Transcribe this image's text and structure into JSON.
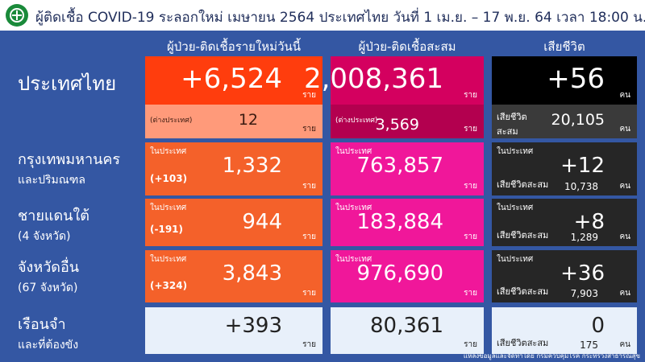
{
  "header": {
    "title": "ผู้ติดเชื้อ COVID-19 ระลอกใหม่ เมษายน 2564 ประเทศไทย วันที่ 1 เม.ย. – 17 พ.ย. 64 เวลา 18:00 น."
  },
  "columns": [
    "ผู้ป่วย-ติดเชื้อรายใหม่วันนี้",
    "ผู้ป่วย-ติดเชื้อสะสม",
    "เสียชีวิต"
  ],
  "rows": [
    {
      "label": [
        "ประเทศไทย"
      ],
      "new": {
        "value": "+6,524",
        "unit": "ราย",
        "sub_label": "(ต่างประเทศ)",
        "sub_value": "12",
        "sub_unit": "ราย"
      },
      "total": {
        "value": "2,008,361",
        "unit": "ราย",
        "sub_label": "(ต่างประเทศ)",
        "sub_value": "3,569",
        "sub_unit": "ราย"
      },
      "deaths": {
        "value": "+56",
        "unit": "คน",
        "sub_label": "เสียชีวิต สะสม",
        "sub_value": "20,105",
        "sub_unit": "คน"
      }
    },
    {
      "label": [
        "กรุงเทพมหานคร",
        "และปริมณฑล"
      ],
      "new": {
        "tag": "ในประเทศ",
        "change": "(+103)",
        "value": "1,332",
        "unit": "ราย"
      },
      "total": {
        "tag": "ในประเทศ",
        "value": "763,857",
        "unit": "ราย"
      },
      "deaths": {
        "tag": "ในประเทศ",
        "value": "+12",
        "cum_label": "เสียชีวิตสะสม",
        "cum_value": "10,738",
        "unit": "คน"
      }
    },
    {
      "label": [
        "ชายแดนใต้",
        "(4 จังหวัด)"
      ],
      "new": {
        "tag": "ในประเทศ",
        "change": "(-191)",
        "value": "944",
        "unit": "ราย"
      },
      "total": {
        "tag": "ในประเทศ",
        "value": "183,884",
        "unit": "ราย"
      },
      "deaths": {
        "tag": "ในประเทศ",
        "value": "+8",
        "cum_label": "เสียชีวิตสะสม",
        "cum_value": "1,289",
        "unit": "คน"
      }
    },
    {
      "label": [
        "จังหวัดอื่น",
        "(67 จังหวัด)"
      ],
      "new": {
        "tag": "ในประเทศ",
        "change": "(+324)",
        "value": "3,843",
        "unit": "ราย"
      },
      "total": {
        "tag": "ในประเทศ",
        "value": "976,690",
        "unit": "ราย"
      },
      "deaths": {
        "tag": "ในประเทศ",
        "value": "+36",
        "cum_label": "เสียชีวิตสะสม",
        "cum_value": "7,903",
        "unit": "คน"
      }
    },
    {
      "label": [
        "เรือนจำ",
        "และที่ต้องขัง"
      ],
      "new": {
        "value": "+393",
        "unit": "ราย"
      },
      "total": {
        "value": "80,361",
        "unit": "ราย"
      },
      "deaths": {
        "value": "0",
        "cum_label": "เสียชีวิตสะสม",
        "cum_value": "175",
        "unit": "คน"
      }
    }
  ],
  "footer": {
    "source": "แหล่งข้อมูลและจัดทำโดย กรมควบคุมโรค กระทรวงสาธารณสุข"
  }
}
